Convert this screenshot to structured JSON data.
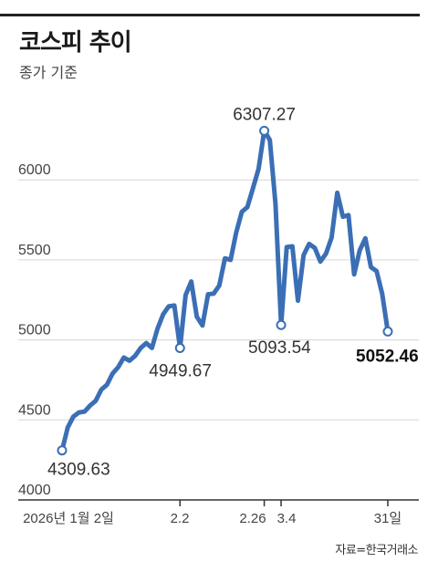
{
  "header": {
    "title": "코스피 추이",
    "subtitle": "종가 기준"
  },
  "source": "자료=한국거래소",
  "colors": {
    "line": "#3b6fb5",
    "grid": "#d6d6d6",
    "axis": "#333333"
  },
  "chart_data": {
    "type": "line",
    "title": "코스피 추이",
    "subtitle": "종가 기준",
    "ylim": [
      4000,
      6600
    ],
    "y_ticks": [
      4000,
      4500,
      5000,
      5500,
      6000
    ],
    "x_tick_labels": [
      "2026년 1월 2일",
      "2.2",
      "2.26",
      "3.4",
      "31일"
    ],
    "grid": true,
    "series": [
      {
        "values": [
          4309.63,
          4452,
          4520,
          4547,
          4552,
          4590,
          4620,
          4690,
          4720,
          4790,
          4830,
          4890,
          4870,
          4900,
          4950,
          4980,
          4950,
          5070,
          5160,
          5210,
          5215,
          4949.67,
          5280,
          5365,
          5145,
          5090,
          5285,
          5290,
          5340,
          5510,
          5500,
          5670,
          5800,
          5830,
          5950,
          6070,
          6307.27,
          6250,
          5850,
          5093.54,
          5580,
          5585,
          5245,
          5530,
          5600,
          5575,
          5490,
          5540,
          5640,
          5920,
          5770,
          5780,
          5410,
          5560,
          5635,
          5455,
          5430,
          5290,
          5052.46
        ]
      }
    ],
    "annotations": [
      {
        "label": "4309.63",
        "index": 0,
        "value": 4309.63,
        "bold": false
      },
      {
        "label": "4949.67",
        "index": 21,
        "value": 4949.67,
        "bold": false
      },
      {
        "label": "6307.27",
        "index": 36,
        "value": 6307.27,
        "bold": false
      },
      {
        "label": "5093.54",
        "index": 39,
        "value": 5093.54,
        "bold": false
      },
      {
        "label": "5052.46",
        "index": 58,
        "value": 5052.46,
        "bold": true
      }
    ]
  }
}
